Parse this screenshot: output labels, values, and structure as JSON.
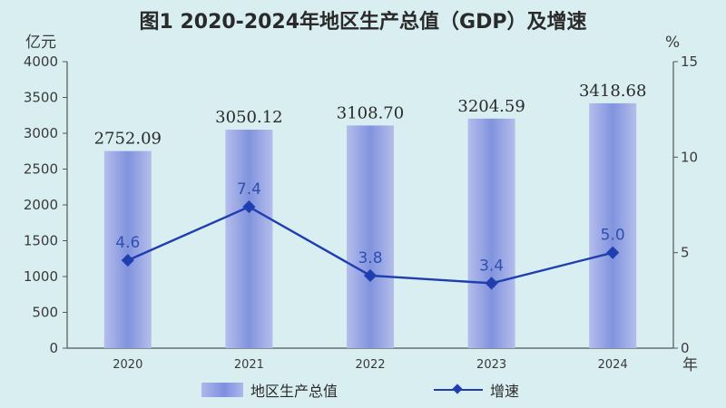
{
  "title": "图1  2020-2024年地区生产总值（GDP）及增速",
  "left_axis_unit": "亿元",
  "right_axis_unit": "%",
  "x_axis_unit": "年",
  "legend": {
    "bar_label": "地区生产总值",
    "line_label": "增速"
  },
  "colors": {
    "background": "#d9eef0",
    "bar": "#8f9ee6",
    "line": "#1f3fb0",
    "point_label": "#2f4fb0"
  },
  "chart_data": {
    "type": "bar",
    "categories": [
      "2020",
      "2021",
      "2022",
      "2023",
      "2024"
    ],
    "series": [
      {
        "name": "地区生产总值",
        "axis": "left",
        "type": "bar",
        "values": [
          2752.09,
          3050.12,
          3108.7,
          3204.59,
          3418.68
        ],
        "labels": [
          "2752.09",
          "3050.12",
          "3108.70",
          "3204.59",
          "3418.68"
        ]
      },
      {
        "name": "增速",
        "axis": "right",
        "type": "line",
        "values": [
          4.6,
          7.4,
          3.8,
          3.4,
          5.0
        ],
        "labels": [
          "4.6",
          "7.4",
          "3.8",
          "3.4",
          "5.0"
        ]
      }
    ],
    "ylim_left": [
      0,
      4000
    ],
    "yticks_left": [
      "0",
      "500",
      "1000",
      "1500",
      "2000",
      "2500",
      "3000",
      "3500",
      "4000"
    ],
    "ylim_right": [
      0,
      15
    ],
    "yticks_right": [
      "0",
      "5",
      "10",
      "15"
    ],
    "grid": false,
    "legend_position": "bottom"
  }
}
